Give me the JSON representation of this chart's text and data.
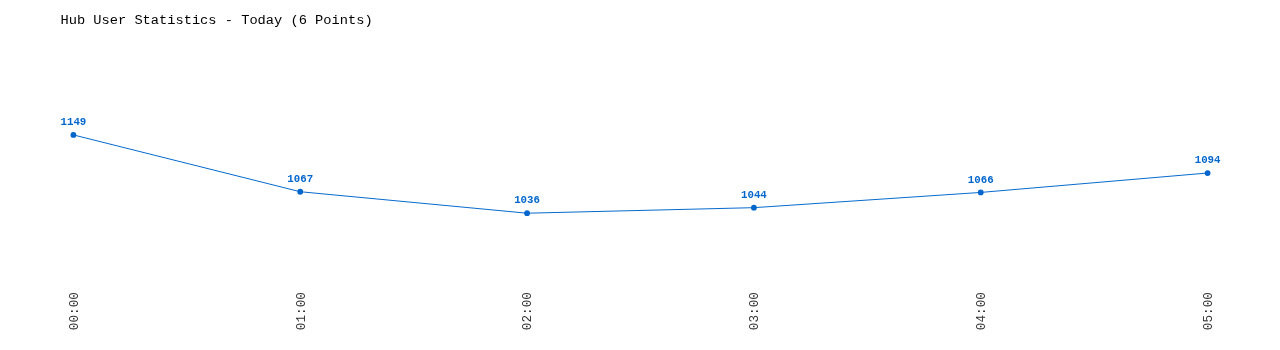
{
  "chart_data": {
    "type": "line",
    "title": "Hub User Statistics - Today (6 Points)",
    "categories": [
      "00:00",
      "01:00",
      "02:00",
      "03:00",
      "04:00",
      "05:00"
    ],
    "series": [
      {
        "color": "#0066cc",
        "values": [
          1149,
          1067,
          1036,
          1044,
          1066,
          1094
        ]
      }
    ],
    "data_labels": true,
    "marker": "circle",
    "line_style": "solid",
    "grid": false,
    "legend": false,
    "tick_labels": "x"
  }
}
